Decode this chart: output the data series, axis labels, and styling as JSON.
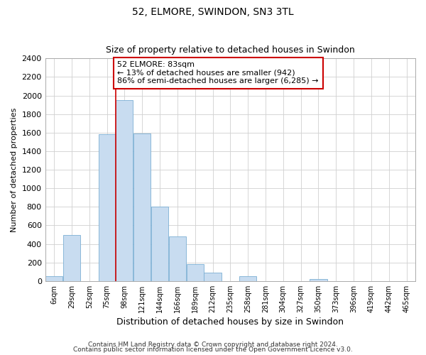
{
  "title": "52, ELMORE, SWINDON, SN3 3TL",
  "subtitle": "Size of property relative to detached houses in Swindon",
  "xlabel": "Distribution of detached houses by size in Swindon",
  "ylabel": "Number of detached properties",
  "categories": [
    "6sqm",
    "29sqm",
    "52sqm",
    "75sqm",
    "98sqm",
    "121sqm",
    "144sqm",
    "166sqm",
    "189sqm",
    "212sqm",
    "235sqm",
    "258sqm",
    "281sqm",
    "304sqm",
    "327sqm",
    "350sqm",
    "373sqm",
    "396sqm",
    "419sqm",
    "442sqm",
    "465sqm"
  ],
  "values": [
    50,
    500,
    0,
    1580,
    1950,
    1590,
    800,
    480,
    185,
    90,
    0,
    55,
    0,
    0,
    0,
    20,
    0,
    0,
    0,
    0,
    0
  ],
  "bar_color": "#c8dcf0",
  "bar_edge_color": "#7bafd4",
  "marker_line_color": "#cc0000",
  "annotation_text": "52 ELMORE: 83sqm\n← 13% of detached houses are smaller (942)\n86% of semi-detached houses are larger (6,285) →",
  "annotation_box_edge_color": "#cc0000",
  "ylim": [
    0,
    2400
  ],
  "yticks": [
    0,
    200,
    400,
    600,
    800,
    1000,
    1200,
    1400,
    1600,
    1800,
    2000,
    2200,
    2400
  ],
  "footer1": "Contains HM Land Registry data © Crown copyright and database right 2024.",
  "footer2": "Contains public sector information licensed under the Open Government Licence v3.0.",
  "background_color": "#ffffff",
  "grid_color": "#d0d0d0"
}
